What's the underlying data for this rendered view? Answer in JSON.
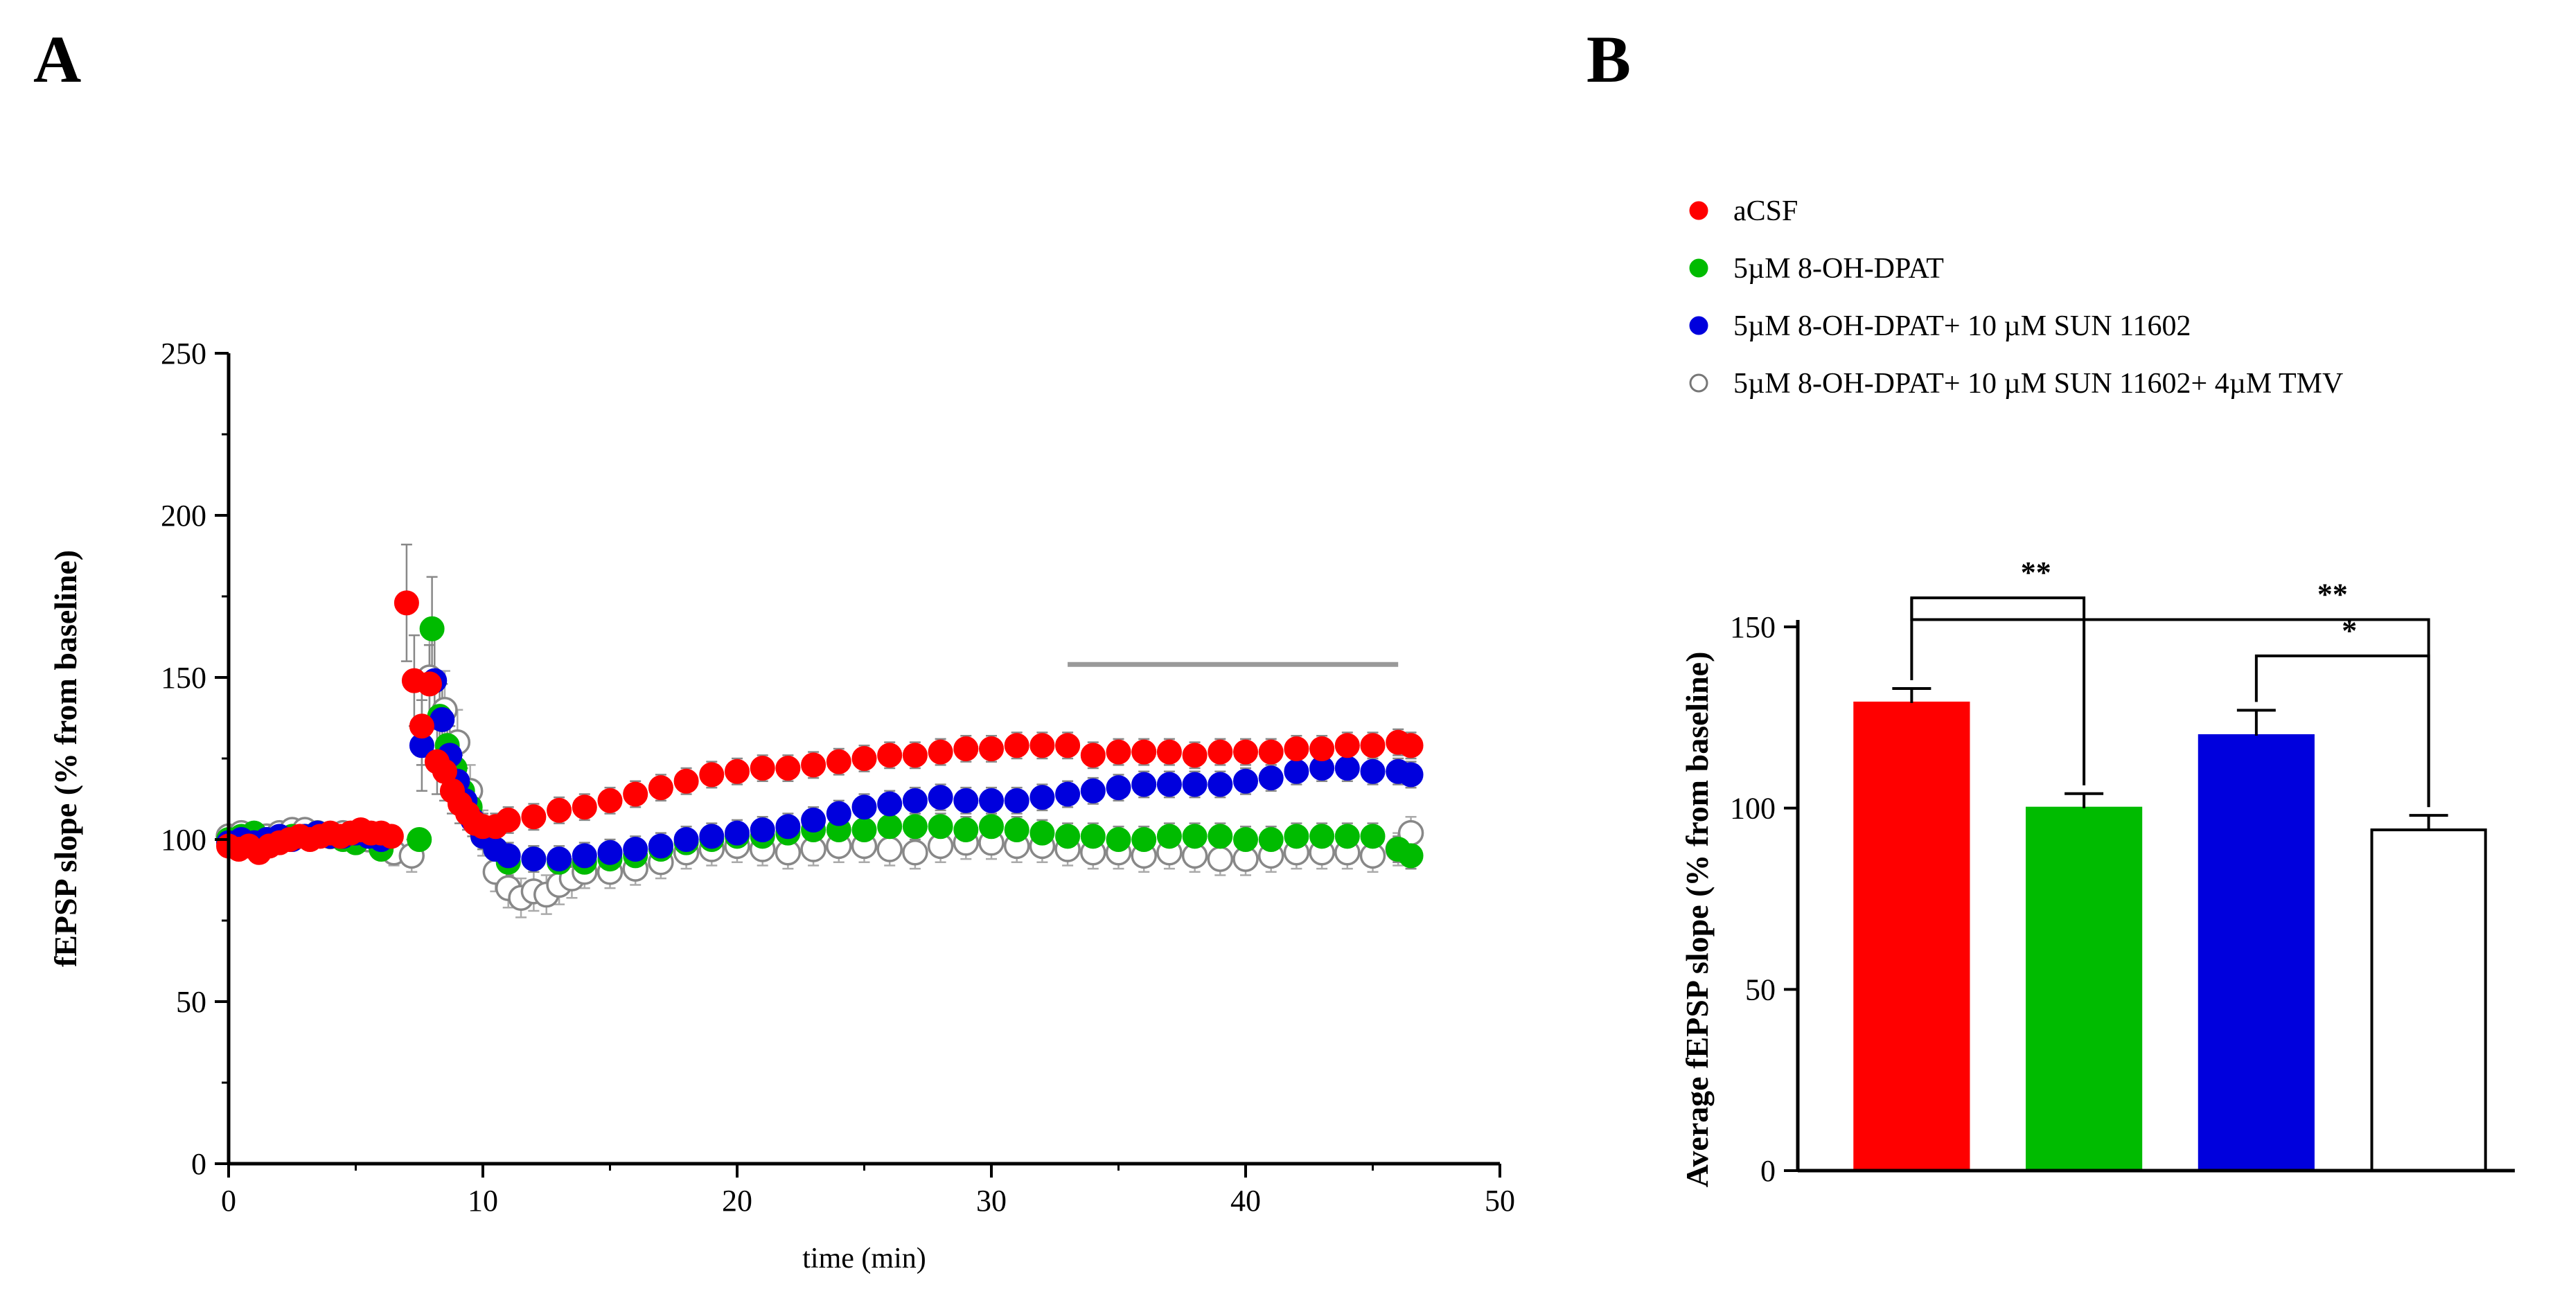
{
  "panels": {
    "a_label": "A",
    "b_label": "B"
  },
  "colors": {
    "aCSF": "#ff0000",
    "dpat": "#00bb00",
    "sun": "#0000dd",
    "tmv": "#ffffff",
    "axis": "#000000",
    "bar_line": "#999999"
  },
  "legend": [
    {
      "label": "aCSF",
      "color": "#ff0000",
      "marker": "filled-circle"
    },
    {
      "label": "5µM 8-OH-DPAT",
      "color": "#00bb00",
      "marker": "filled-circle"
    },
    {
      "label": "5µM 8-OH-DPAT+ 10 µM SUN 11602",
      "color": "#0000dd",
      "marker": "filled-circle"
    },
    {
      "label": "5µM 8-OH-DPAT+ 10 µM SUN 11602+ 4µM TMV",
      "color": "#ffffff",
      "marker": "open-circle"
    }
  ],
  "chart_data": [
    {
      "id": "A",
      "type": "scatter",
      "xlabel": "time (min)",
      "ylabel": "fEPSP slope (% from baseline)",
      "xlim": [
        0,
        50
      ],
      "ylim": [
        0,
        250
      ],
      "xticks": [
        0,
        10,
        20,
        30,
        40,
        50
      ],
      "yticks": [
        0,
        50,
        100,
        150,
        200,
        250
      ],
      "analysis_window": [
        33,
        46
      ],
      "series": [
        {
          "name": "aCSF",
          "color": "#ff0000",
          "filled": true,
          "x": [
            0,
            0.4,
            0.8,
            1.2,
            1.6,
            2,
            2.4,
            2.8,
            3.2,
            3.6,
            4,
            4.4,
            4.8,
            5.2,
            5.6,
            6,
            6.4,
            7,
            7.3,
            7.6,
            7.9,
            8.2,
            8.5,
            8.8,
            9.1,
            9.4,
            9.7,
            10,
            10.5,
            11,
            12,
            13,
            14,
            15,
            16,
            17,
            18,
            19,
            20,
            21,
            22,
            23,
            24,
            25,
            26,
            27,
            28,
            29,
            30,
            31,
            32,
            33,
            34,
            35,
            36,
            37,
            38,
            39,
            40,
            41,
            42,
            43,
            44,
            45,
            46,
            46.5
          ],
          "y": [
            98,
            97,
            98,
            96,
            98,
            99,
            100,
            101,
            100,
            101,
            102,
            101,
            102,
            103,
            102,
            102,
            101,
            173,
            149,
            135,
            148,
            124,
            121,
            115,
            111,
            108,
            105,
            104,
            104,
            106,
            107,
            109,
            110,
            112,
            114,
            116,
            118,
            120,
            121,
            122,
            122,
            123,
            124,
            125,
            126,
            126,
            127,
            128,
            128,
            129,
            129,
            129,
            126,
            127,
            127,
            127,
            126,
            127,
            127,
            127,
            128,
            128,
            129,
            129,
            130,
            129
          ],
          "err": [
            3,
            3,
            3,
            3,
            3,
            3,
            3,
            3,
            3,
            3,
            3,
            3,
            3,
            3,
            3,
            3,
            3,
            18,
            14,
            12,
            12,
            10,
            9,
            7,
            6,
            5,
            4,
            4,
            4,
            4,
            4,
            4,
            4,
            4,
            4,
            4,
            4,
            4,
            4,
            4,
            4,
            4,
            4,
            4,
            4,
            4,
            4,
            4,
            4,
            4,
            4,
            4,
            4,
            4,
            4,
            4,
            4,
            4,
            4,
            4,
            4,
            4,
            4,
            4,
            4,
            4
          ]
        },
        {
          "name": "5µM 8-OH-DPAT",
          "color": "#00bb00",
          "filled": true,
          "x": [
            0,
            0.5,
            1,
            1.5,
            2,
            2.5,
            3,
            3.5,
            4,
            4.5,
            5,
            5.5,
            6,
            7.5,
            8,
            8.3,
            8.6,
            8.9,
            9.2,
            9.5,
            10,
            10.5,
            11,
            12,
            13,
            14,
            15,
            16,
            17,
            18,
            19,
            20,
            21,
            22,
            23,
            24,
            25,
            26,
            27,
            28,
            29,
            30,
            31,
            32,
            33,
            34,
            35,
            36,
            37,
            38,
            39,
            40,
            41,
            42,
            43,
            44,
            45,
            46,
            46.5
          ],
          "y": [
            100,
            101,
            102,
            100,
            100,
            101,
            101,
            102,
            101,
            100,
            99,
            101,
            97,
            100,
            165,
            138,
            129,
            122,
            115,
            110,
            101,
            97,
            93,
            94,
            93,
            93,
            94,
            95,
            97,
            99,
            100,
            101,
            101,
            102,
            103,
            103,
            103,
            104,
            104,
            104,
            103,
            104,
            103,
            102,
            101,
            101,
            100,
            100,
            101,
            101,
            101,
            100,
            100,
            101,
            101,
            101,
            101,
            97,
            95
          ],
          "err": [
            3,
            3,
            3,
            3,
            3,
            3,
            3,
            3,
            3,
            3,
            3,
            3,
            3,
            3,
            16,
            12,
            10,
            8,
            7,
            5,
            4,
            4,
            4,
            4,
            4,
            4,
            4,
            4,
            4,
            4,
            4,
            4,
            4,
            4,
            4,
            4,
            4,
            4,
            4,
            4,
            4,
            4,
            4,
            4,
            4,
            4,
            4,
            4,
            4,
            4,
            4,
            4,
            4,
            4,
            4,
            4,
            4,
            4,
            4
          ]
        },
        {
          "name": "5µM 8-OH-DPAT+ 10 µM SUN 11602",
          "color": "#0000dd",
          "filled": true,
          "x": [
            0,
            0.5,
            1,
            1.5,
            2,
            2.5,
            3,
            3.5,
            4,
            4.5,
            5,
            5.5,
            6,
            7.6,
            8.1,
            8.4,
            8.7,
            9,
            9.3,
            9.6,
            10,
            10.5,
            11,
            12,
            13,
            14,
            15,
            16,
            17,
            18,
            19,
            20,
            21,
            22,
            23,
            24,
            25,
            26,
            27,
            28,
            29,
            30,
            31,
            32,
            33,
            34,
            35,
            36,
            37,
            38,
            39,
            40,
            41,
            42,
            43,
            44,
            45,
            46,
            46.5
          ],
          "y": [
            99,
            100,
            99,
            100,
            101,
            100,
            101,
            102,
            101,
            101,
            102,
            101,
            100,
            129,
            149,
            137,
            126,
            118,
            112,
            106,
            101,
            97,
            95,
            94,
            94,
            95,
            96,
            97,
            98,
            100,
            101,
            102,
            103,
            104,
            106,
            108,
            110,
            111,
            112,
            113,
            112,
            112,
            112,
            113,
            114,
            115,
            116,
            117,
            117,
            117,
            117,
            118,
            119,
            121,
            122,
            122,
            121,
            121,
            120
          ],
          "err": [
            3,
            3,
            3,
            3,
            3,
            3,
            3,
            3,
            3,
            3,
            3,
            3,
            3,
            14,
            14,
            11,
            9,
            8,
            6,
            5,
            4,
            4,
            4,
            4,
            4,
            4,
            4,
            4,
            4,
            4,
            4,
            4,
            4,
            4,
            4,
            4,
            4,
            4,
            4,
            4,
            4,
            4,
            4,
            4,
            4,
            4,
            4,
            4,
            4,
            4,
            4,
            4,
            4,
            4,
            4,
            4,
            4,
            4,
            4
          ]
        },
        {
          "name": "5µM 8-OH-DPAT+ 10 µM SUN 11602+ 4µM TMV",
          "color": "#ffffff",
          "filled": false,
          "x": [
            0,
            0.5,
            1,
            1.5,
            2,
            2.5,
            3,
            3.5,
            4,
            4.5,
            5,
            5.5,
            6,
            6.5,
            7.2,
            7.9,
            8.5,
            9,
            9.5,
            10,
            10.5,
            11,
            11.5,
            12,
            12.5,
            13,
            13.5,
            14,
            15,
            16,
            17,
            18,
            19,
            20,
            21,
            22,
            23,
            24,
            25,
            26,
            27,
            28,
            29,
            30,
            31,
            32,
            33,
            34,
            35,
            36,
            37,
            38,
            39,
            40,
            41,
            42,
            43,
            44,
            45,
            46,
            46.5
          ],
          "y": [
            101,
            102,
            100,
            101,
            102,
            103,
            103,
            102,
            101,
            102,
            101,
            100,
            98,
            96,
            95,
            150,
            140,
            130,
            115,
            102,
            90,
            85,
            82,
            84,
            83,
            86,
            88,
            90,
            90,
            91,
            93,
            96,
            97,
            98,
            97,
            96,
            97,
            98,
            98,
            97,
            96,
            98,
            99,
            99,
            98,
            98,
            97,
            96,
            96,
            95,
            96,
            95,
            94,
            94,
            95,
            96,
            96,
            96,
            95,
            97,
            102
          ],
          "err": [
            3,
            3,
            3,
            3,
            3,
            3,
            3,
            3,
            3,
            3,
            3,
            3,
            3,
            4,
            5,
            14,
            12,
            10,
            8,
            7,
            6,
            6,
            6,
            6,
            6,
            6,
            6,
            5,
            5,
            5,
            5,
            5,
            5,
            5,
            5,
            5,
            5,
            5,
            5,
            5,
            5,
            5,
            5,
            5,
            5,
            5,
            5,
            5,
            5,
            5,
            5,
            5,
            5,
            5,
            5,
            5,
            5,
            5,
            5,
            5,
            5
          ]
        }
      ]
    },
    {
      "id": "B",
      "type": "bar",
      "ylabel": "Average fEPSP slope (% from baseline)",
      "xlabel": "",
      "ylim": [
        0,
        150
      ],
      "yticks": [
        0,
        50,
        100,
        150
      ],
      "categories": [
        "aCSF",
        "5µM 8-OH-DPAT",
        "5µM 8-OH-DPAT+ 10 µM SUN 11602",
        "5µM 8-OH-DPAT+ 10 µM SUN 11602+ 4µM TMV"
      ],
      "values": [
        129,
        100,
        120,
        94
      ],
      "errors": [
        4,
        4,
        7,
        4
      ],
      "colors": [
        "#ff0000",
        "#00bb00",
        "#0000dd",
        "#ffffff"
      ],
      "significance": [
        {
          "from": 0,
          "to": 1,
          "label": "**"
        },
        {
          "from": 0,
          "to": 3,
          "label": "**"
        },
        {
          "from": 2,
          "to": 3,
          "label": "*"
        }
      ]
    }
  ]
}
